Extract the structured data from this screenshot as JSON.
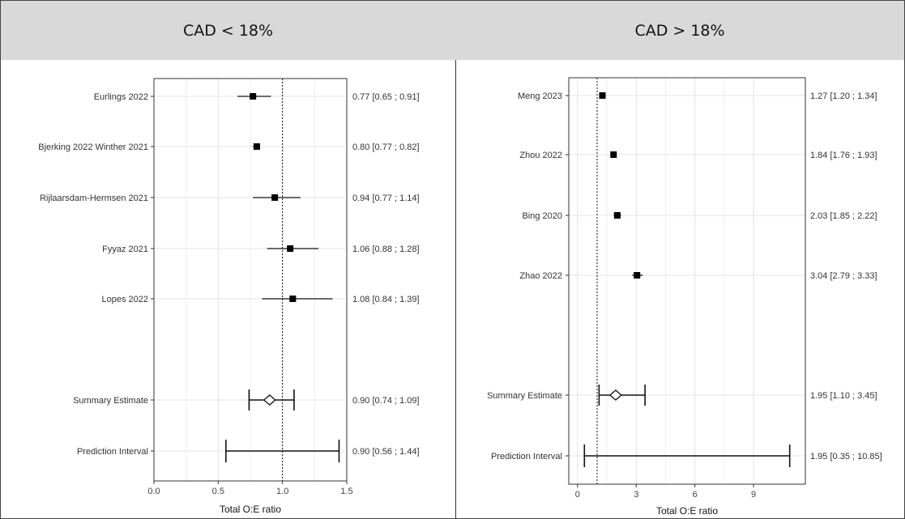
{
  "chart_data": [
    {
      "type": "forest",
      "title": "CAD < 18%",
      "xlabel": "Total O:E ratio",
      "xlim": [
        0,
        1.5
      ],
      "xticks": [
        "0.0",
        "0.5",
        "1.0",
        "1.5"
      ],
      "xtick_values": [
        0,
        0.5,
        1.0,
        1.5
      ],
      "reference_line": 1,
      "grid": true,
      "studies": [
        {
          "label": "Eurlings 2022",
          "estimate": 0.77,
          "lower": 0.65,
          "upper": 0.91,
          "ci_text": "0.77 [0.65 ; 0.91]"
        },
        {
          "label": "Bjerking 2022 Winther 2021",
          "estimate": 0.8,
          "lower": 0.77,
          "upper": 0.82,
          "ci_text": "0.80 [0.77 ; 0.82]"
        },
        {
          "label": "Rijlaarsdam-Hermsen 2021",
          "estimate": 0.94,
          "lower": 0.77,
          "upper": 1.14,
          "ci_text": "0.94 [0.77 ; 1.14]"
        },
        {
          "label": "Fyyaz 2021",
          "estimate": 1.06,
          "lower": 0.88,
          "upper": 1.28,
          "ci_text": "1.06 [0.88 ; 1.28]"
        },
        {
          "label": "Lopes 2022",
          "estimate": 1.08,
          "lower": 0.84,
          "upper": 1.39,
          "ci_text": "1.08 [0.84 ; 1.39]"
        }
      ],
      "summary": {
        "label": "Summary Estimate",
        "estimate": 0.9,
        "lower": 0.74,
        "upper": 1.09,
        "ci_text": "0.90 [0.74 ; 1.09]"
      },
      "prediction": {
        "label": "Prediction Interval",
        "estimate": 0.9,
        "lower": 0.56,
        "upper": 1.44,
        "ci_text": "0.90 [0.56 ; 1.44]"
      }
    },
    {
      "type": "forest",
      "title": "CAD > 18%",
      "xlabel": "Total O:E ratio",
      "xlim": [
        -0.45,
        11.65
      ],
      "xticks": [
        "0",
        "3",
        "6",
        "9"
      ],
      "xtick_values": [
        0,
        3,
        6,
        9
      ],
      "reference_line": 1,
      "grid": true,
      "studies": [
        {
          "label": "Meng 2023",
          "estimate": 1.27,
          "lower": 1.2,
          "upper": 1.34,
          "ci_text": "1.27 [1.20 ;  1.34]"
        },
        {
          "label": "Zhou 2022",
          "estimate": 1.84,
          "lower": 1.76,
          "upper": 1.93,
          "ci_text": "1.84 [1.76 ;  1.93]"
        },
        {
          "label": "Bing 2020",
          "estimate": 2.03,
          "lower": 1.85,
          "upper": 2.22,
          "ci_text": "2.03 [1.85 ;  2.22]"
        },
        {
          "label": "Zhao 2022",
          "estimate": 3.04,
          "lower": 2.79,
          "upper": 3.33,
          "ci_text": "3.04 [2.79 ;  3.33]"
        }
      ],
      "summary": {
        "label": "Summary Estimate",
        "estimate": 1.95,
        "lower": 1.1,
        "upper": 3.45,
        "ci_text": "1.95 [1.10 ;  3.45]"
      },
      "prediction": {
        "label": "Prediction Interval",
        "estimate": 1.95,
        "lower": 0.35,
        "upper": 10.85,
        "ci_text": "1.95 [0.35 ; 10.85]"
      }
    }
  ]
}
